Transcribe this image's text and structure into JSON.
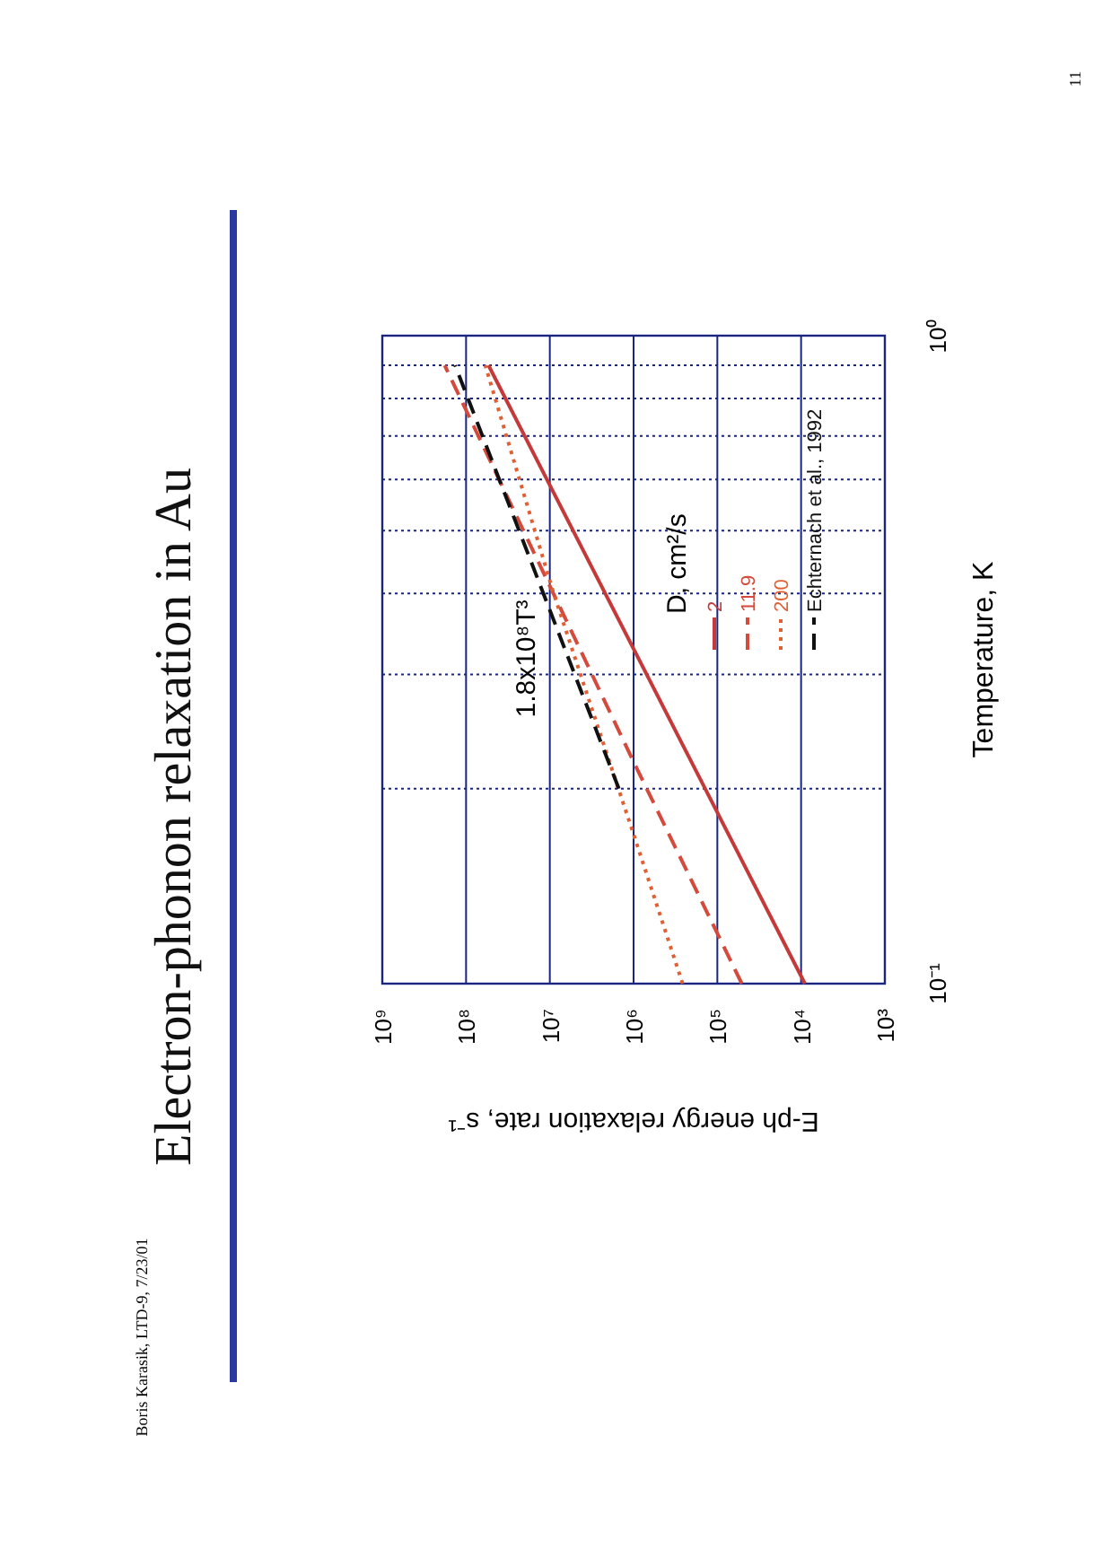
{
  "chart_data": {
    "type": "line",
    "title": "Electron-phonon relaxation in Au",
    "xlabel": "E-ph energy relaxation rate, s⁻¹",
    "ylabel": "Temperature, K",
    "legend_title": "D, cm²/s",
    "log": "xy",
    "grid": true,
    "legend": "top right",
    "xlim": [
      1000000000,
      1000
    ],
    "ylim": [
      0.1,
      1
    ],
    "xticks": [
      {
        "value": 1000000000,
        "label": "10⁹"
      },
      {
        "value": 100000000,
        "label": "10⁸"
      },
      {
        "value": 10000000,
        "label": "10⁷"
      },
      {
        "value": 1000000,
        "label": "10⁶"
      },
      {
        "value": 100000,
        "label": "10⁵"
      },
      {
        "value": 10000,
        "label": "10⁴"
      },
      {
        "value": 1000,
        "label": "10³"
      }
    ],
    "yticks": [
      {
        "value": 0.1,
        "label": "10⁻¹"
      },
      {
        "value": 0.2,
        "label": null
      },
      {
        "value": 0.3,
        "label": null
      },
      {
        "value": 0.4,
        "label": null
      },
      {
        "value": 0.5,
        "label": null
      },
      {
        "value": 0.6,
        "label": null
      },
      {
        "value": 0.7,
        "label": null
      },
      {
        "value": 0.8,
        "label": null
      },
      {
        "value": 0.9,
        "label": null
      },
      {
        "value": 1,
        "label": "10⁰"
      }
    ],
    "series": [
      {
        "name": "2",
        "color": "#c43a3a",
        "line_style": "solid",
        "x": [
          9000,
          54000000
        ],
        "values": [
          0.1,
          0.9
        ]
      },
      {
        "name": "11.9",
        "color": "#d44a3c",
        "line_style": "dashed",
        "x": [
          51000,
          1000000,
          180000000
        ],
        "values": [
          0.1,
          0.22,
          0.9
        ]
      },
      {
        "name": "200",
        "color": "#e06034",
        "line_style": "dotted",
        "x": [
          260000,
          1000000,
          9000000,
          59000000
        ],
        "values": [
          0.1,
          0.17,
          0.4,
          0.9
        ]
      },
      {
        "name": "Echternach et al., 1992",
        "color": "#111111",
        "line_style": "dashed",
        "x": [
          1500000,
          135000000
        ],
        "values": [
          0.2,
          0.9
        ]
      }
    ],
    "annotations": [
      "1.8x10⁸T³",
      "Boris Karasik, LTD-9, 7/23/01",
      "11"
    ]
  }
}
